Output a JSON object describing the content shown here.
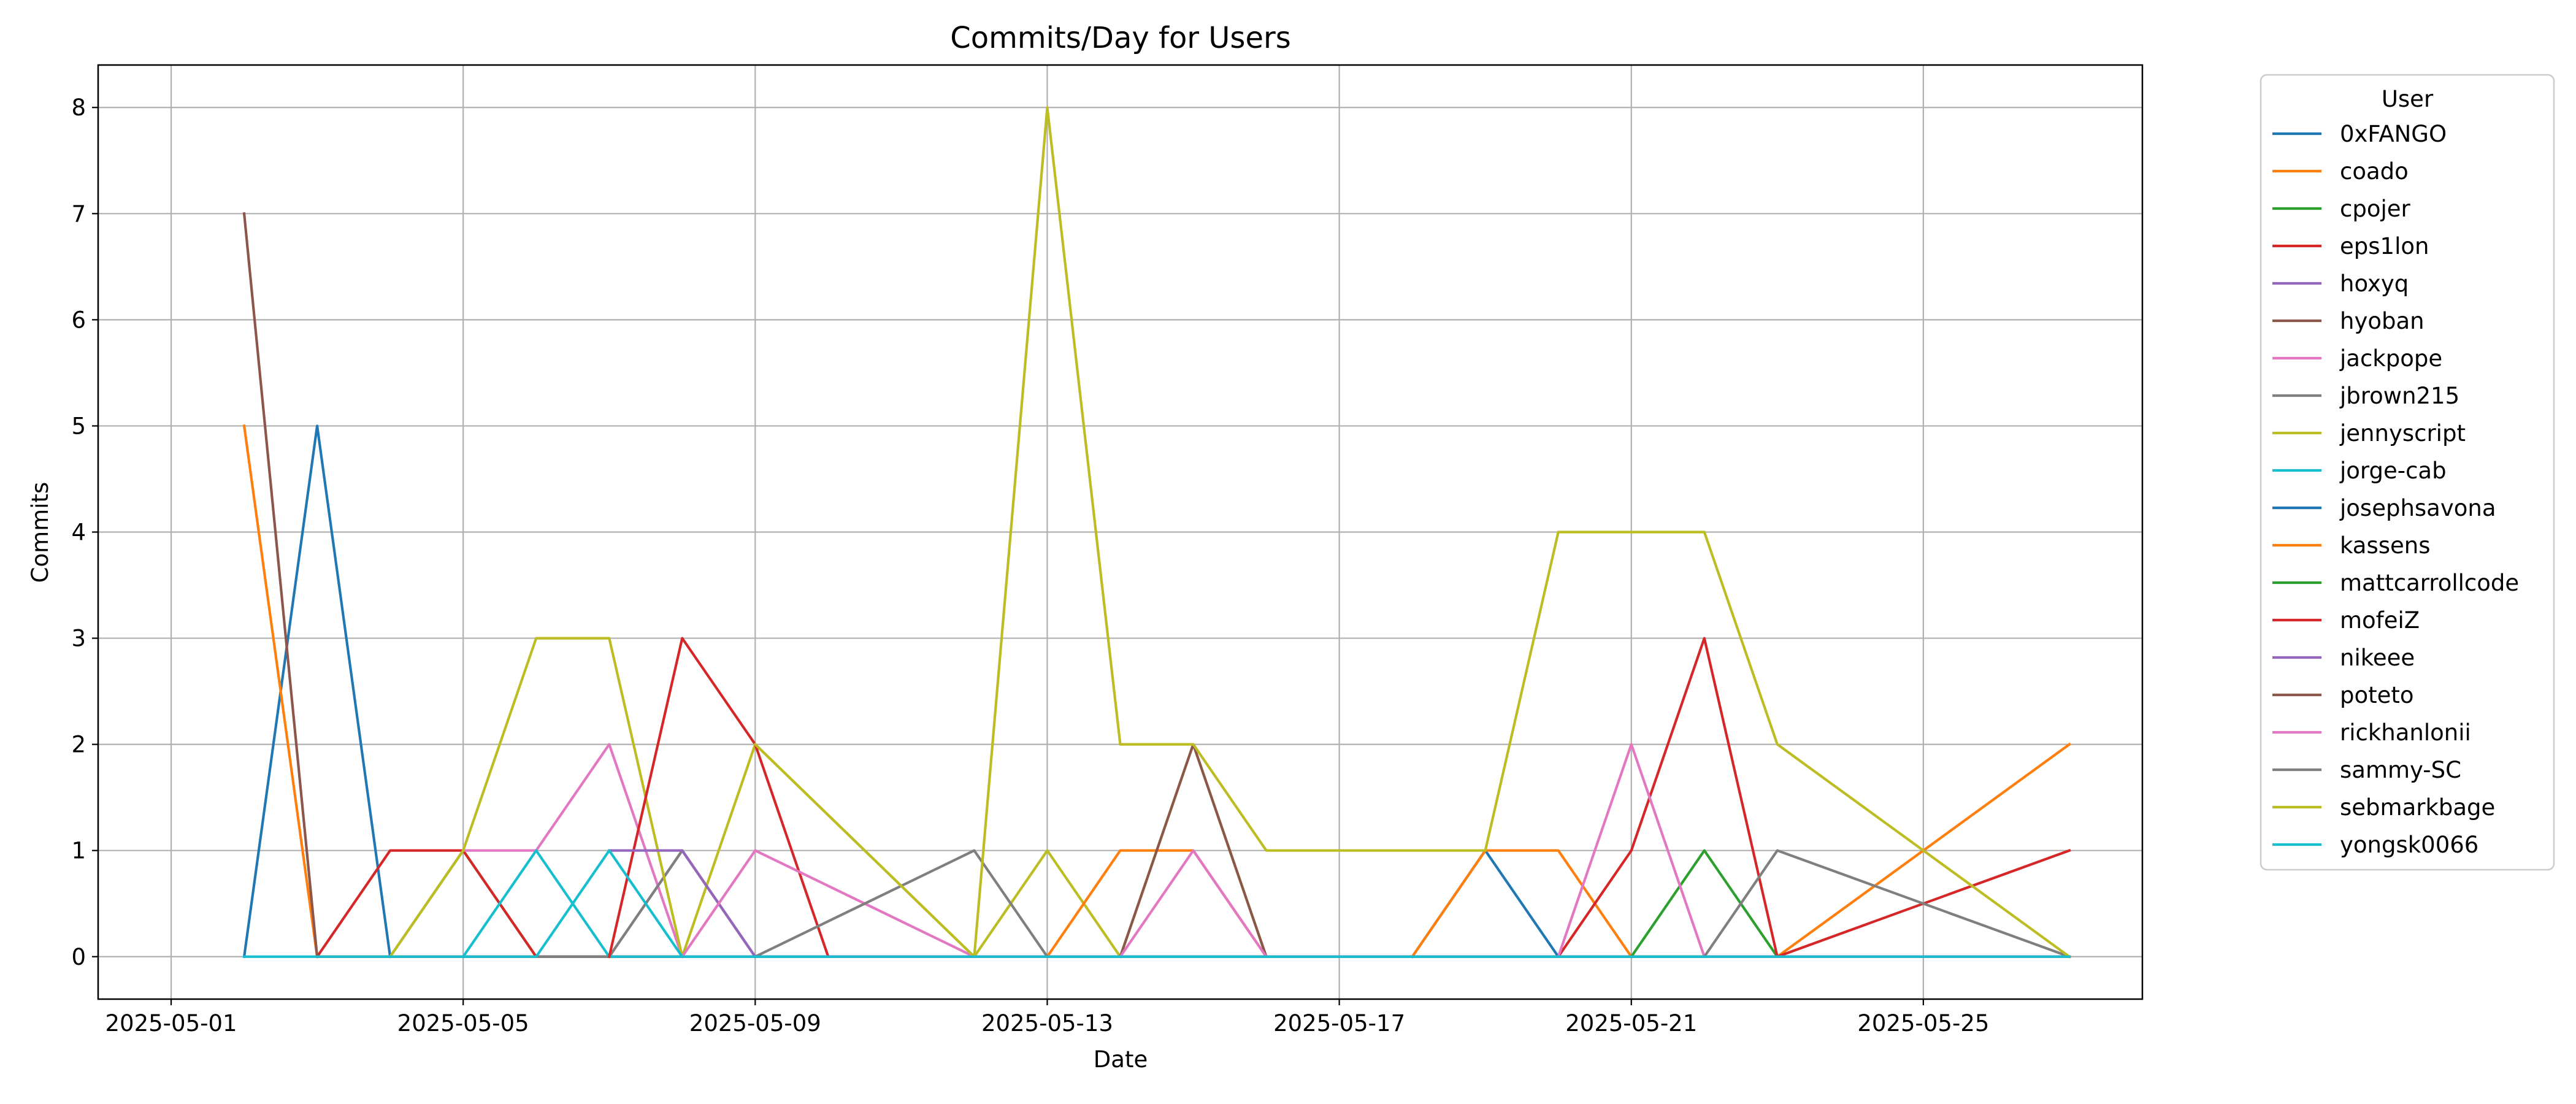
{
  "chart_data": {
    "type": "line",
    "title": "Commits/Day for Users",
    "xlabel": "Date",
    "ylabel": "Commits",
    "legend_title": "User",
    "legend_position": "outside-right-top",
    "grid": true,
    "xlim": [
      "2025-04-30",
      "2025-05-28"
    ],
    "ylim": [
      -0.4,
      8.4
    ],
    "x_ticks": [
      "2025-05-01",
      "2025-05-05",
      "2025-05-09",
      "2025-05-13",
      "2025-05-17",
      "2025-05-21",
      "2025-05-25"
    ],
    "y_ticks": [
      0,
      1,
      2,
      3,
      4,
      5,
      6,
      7,
      8
    ],
    "series": [
      {
        "name": "0xFANGO",
        "color": "#1f77b4",
        "points": [
          [
            "2025-05-02",
            0
          ],
          [
            "2025-05-03",
            5
          ],
          [
            "2025-05-04",
            0
          ],
          [
            "2025-05-27",
            0
          ]
        ]
      },
      {
        "name": "coado",
        "color": "#ff7f0e",
        "points": [
          [
            "2025-05-02",
            5
          ],
          [
            "2025-05-03",
            0
          ],
          [
            "2025-05-27",
            0
          ]
        ]
      },
      {
        "name": "cpojer",
        "color": "#2ca02c",
        "points": [
          [
            "2025-05-04",
            0
          ],
          [
            "2025-05-05",
            1
          ],
          [
            "2025-05-06",
            0
          ],
          [
            "2025-05-27",
            0
          ]
        ]
      },
      {
        "name": "eps1lon",
        "color": "#d62728",
        "points": [
          [
            "2025-05-03",
            0
          ],
          [
            "2025-05-04",
            1
          ],
          [
            "2025-05-05",
            1
          ],
          [
            "2025-05-06",
            0
          ],
          [
            "2025-05-27",
            0
          ]
        ]
      },
      {
        "name": "hoxyq",
        "color": "#9467bd",
        "points": [
          [
            "2025-05-06",
            0
          ],
          [
            "2025-05-07",
            0
          ],
          [
            "2025-05-08",
            1
          ],
          [
            "2025-05-09",
            0
          ],
          [
            "2025-05-27",
            0
          ]
        ]
      },
      {
        "name": "hyoban",
        "color": "#8c564b",
        "points": [
          [
            "2025-05-02",
            7
          ],
          [
            "2025-05-03",
            0
          ],
          [
            "2025-05-27",
            0
          ]
        ]
      },
      {
        "name": "jackpope",
        "color": "#e377c2",
        "points": [
          [
            "2025-05-05",
            1
          ],
          [
            "2025-05-06",
            1
          ],
          [
            "2025-05-07",
            2
          ],
          [
            "2025-05-08",
            0
          ],
          [
            "2025-05-27",
            0
          ]
        ]
      },
      {
        "name": "jbrown215",
        "color": "#7f7f7f",
        "points": [
          [
            "2025-05-06",
            0
          ],
          [
            "2025-05-07",
            0
          ],
          [
            "2025-05-08",
            1
          ],
          [
            "2025-05-09",
            0
          ],
          [
            "2025-05-27",
            0
          ]
        ]
      },
      {
        "name": "jennyscript",
        "color": "#bcbd22",
        "points": [
          [
            "2025-05-04",
            0
          ],
          [
            "2025-05-05",
            1
          ],
          [
            "2025-05-06",
            3
          ],
          [
            "2025-05-07",
            3
          ],
          [
            "2025-05-08",
            0
          ],
          [
            "2025-05-09",
            2
          ],
          [
            "2025-05-12",
            0
          ],
          [
            "2025-05-13",
            1
          ],
          [
            "2025-05-14",
            0
          ],
          [
            "2025-05-15",
            2
          ],
          [
            "2025-05-16",
            0
          ],
          [
            "2025-05-27",
            0
          ]
        ]
      },
      {
        "name": "jorge-cab",
        "color": "#17becf",
        "points": [
          [
            "2025-05-05",
            0
          ],
          [
            "2025-05-06",
            1
          ],
          [
            "2025-05-07",
            0
          ],
          [
            "2025-05-27",
            0
          ]
        ]
      },
      {
        "name": "josephsavona",
        "color": "#1f77b4",
        "points": [
          [
            "2025-05-18",
            0
          ],
          [
            "2025-05-19",
            1
          ],
          [
            "2025-05-20",
            0
          ],
          [
            "2025-05-27",
            0
          ]
        ]
      },
      {
        "name": "kassens",
        "color": "#ff7f0e",
        "points": [
          [
            "2025-05-13",
            0
          ],
          [
            "2025-05-14",
            1
          ],
          [
            "2025-05-15",
            1
          ],
          [
            "2025-05-16",
            0
          ],
          [
            "2025-05-18",
            0
          ],
          [
            "2025-05-19",
            1
          ],
          [
            "2025-05-20",
            1
          ],
          [
            "2025-05-21",
            0
          ],
          [
            "2025-05-23",
            0
          ],
          [
            "2025-05-25",
            1
          ],
          [
            "2025-05-27",
            2
          ]
        ]
      },
      {
        "name": "mattcarrollcode",
        "color": "#2ca02c",
        "points": [
          [
            "2025-05-21",
            0
          ],
          [
            "2025-05-22",
            1
          ],
          [
            "2025-05-23",
            0
          ],
          [
            "2025-05-27",
            0
          ]
        ]
      },
      {
        "name": "mofeiZ",
        "color": "#d62728",
        "points": [
          [
            "2025-05-07",
            0
          ],
          [
            "2025-05-08",
            3
          ],
          [
            "2025-05-09",
            2
          ],
          [
            "2025-05-10",
            0
          ],
          [
            "2025-05-20",
            0
          ],
          [
            "2025-05-21",
            1
          ],
          [
            "2025-05-22",
            3
          ],
          [
            "2025-05-23",
            0
          ],
          [
            "2025-05-27",
            1
          ]
        ]
      },
      {
        "name": "nikeee",
        "color": "#9467bd",
        "points": [
          [
            "2025-05-07",
            1
          ],
          [
            "2025-05-08",
            1
          ],
          [
            "2025-05-09",
            0
          ],
          [
            "2025-05-27",
            0
          ]
        ]
      },
      {
        "name": "poteto",
        "color": "#8c564b",
        "points": [
          [
            "2025-05-14",
            0
          ],
          [
            "2025-05-15",
            2
          ],
          [
            "2025-05-16",
            0
          ],
          [
            "2025-05-27",
            0
          ]
        ]
      },
      {
        "name": "rickhanlonii",
        "color": "#e377c2",
        "points": [
          [
            "2025-05-08",
            0
          ],
          [
            "2025-05-09",
            1
          ],
          [
            "2025-05-12",
            0
          ],
          [
            "2025-05-14",
            0
          ],
          [
            "2025-05-15",
            1
          ],
          [
            "2025-05-16",
            0
          ],
          [
            "2025-05-20",
            0
          ],
          [
            "2025-05-21",
            2
          ],
          [
            "2025-05-22",
            0
          ],
          [
            "2025-05-27",
            0
          ]
        ]
      },
      {
        "name": "sammy-SC",
        "color": "#7f7f7f",
        "points": [
          [
            "2025-05-09",
            0
          ],
          [
            "2025-05-12",
            1
          ],
          [
            "2025-05-13",
            0
          ],
          [
            "2025-05-22",
            0
          ],
          [
            "2025-05-23",
            1
          ],
          [
            "2025-05-27",
            0
          ]
        ]
      },
      {
        "name": "sebmarkbage",
        "color": "#bcbd22",
        "points": [
          [
            "2025-05-09",
            2
          ],
          [
            "2025-05-12",
            0
          ],
          [
            "2025-05-13",
            8
          ],
          [
            "2025-05-14",
            2
          ],
          [
            "2025-05-15",
            2
          ],
          [
            "2025-05-16",
            1
          ],
          [
            "2025-05-19",
            1
          ],
          [
            "2025-05-20",
            4
          ],
          [
            "2025-05-22",
            4
          ],
          [
            "2025-05-23",
            2
          ],
          [
            "2025-05-25",
            1
          ],
          [
            "2025-05-27",
            0
          ]
        ]
      },
      {
        "name": "yongsk0066",
        "color": "#17becf",
        "points": [
          [
            "2025-05-02",
            0
          ],
          [
            "2025-05-06",
            0
          ],
          [
            "2025-05-07",
            1
          ],
          [
            "2025-05-08",
            0
          ],
          [
            "2025-05-27",
            0
          ]
        ]
      }
    ]
  }
}
